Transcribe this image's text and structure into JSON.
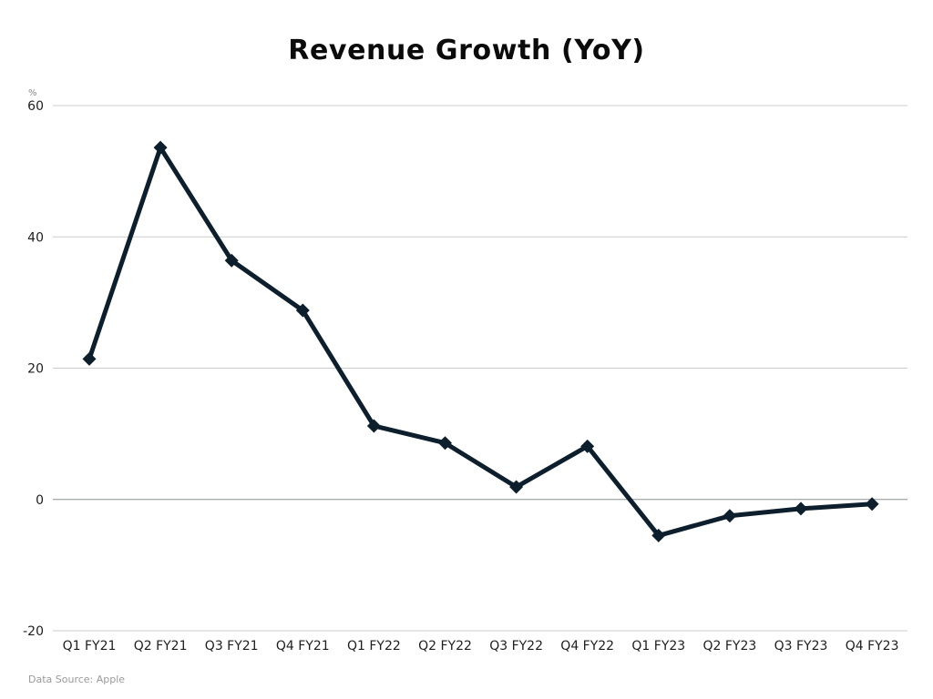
{
  "chart_data": {
    "type": "line",
    "title": "Revenue Growth (YoY)",
    "ylabel": "%",
    "xlabel": "",
    "categories": [
      "Q1 FY21",
      "Q2 FY21",
      "Q3 FY21",
      "Q4 FY21",
      "Q1 FY22",
      "Q2 FY22",
      "Q3 FY22",
      "Q4 FY22",
      "Q1 FY23",
      "Q2 FY23",
      "Q3 FY23",
      "Q4 FY23"
    ],
    "series": [
      {
        "name": "Revenue Growth (YoY)",
        "values": [
          21.4,
          53.6,
          36.4,
          28.8,
          11.2,
          8.6,
          1.9,
          8.1,
          -5.5,
          -2.5,
          -1.4,
          -0.7
        ]
      }
    ],
    "ylim": [
      -20,
      60
    ],
    "yticks": [
      60,
      40,
      20,
      0,
      -20
    ],
    "grid": true,
    "marker": "diamond",
    "line_color": "#0d1f2d",
    "grid_color": "#cccccc",
    "zero_line_color": "#8a9196"
  },
  "source": {
    "label": "Data Source:",
    "value": "Apple"
  }
}
